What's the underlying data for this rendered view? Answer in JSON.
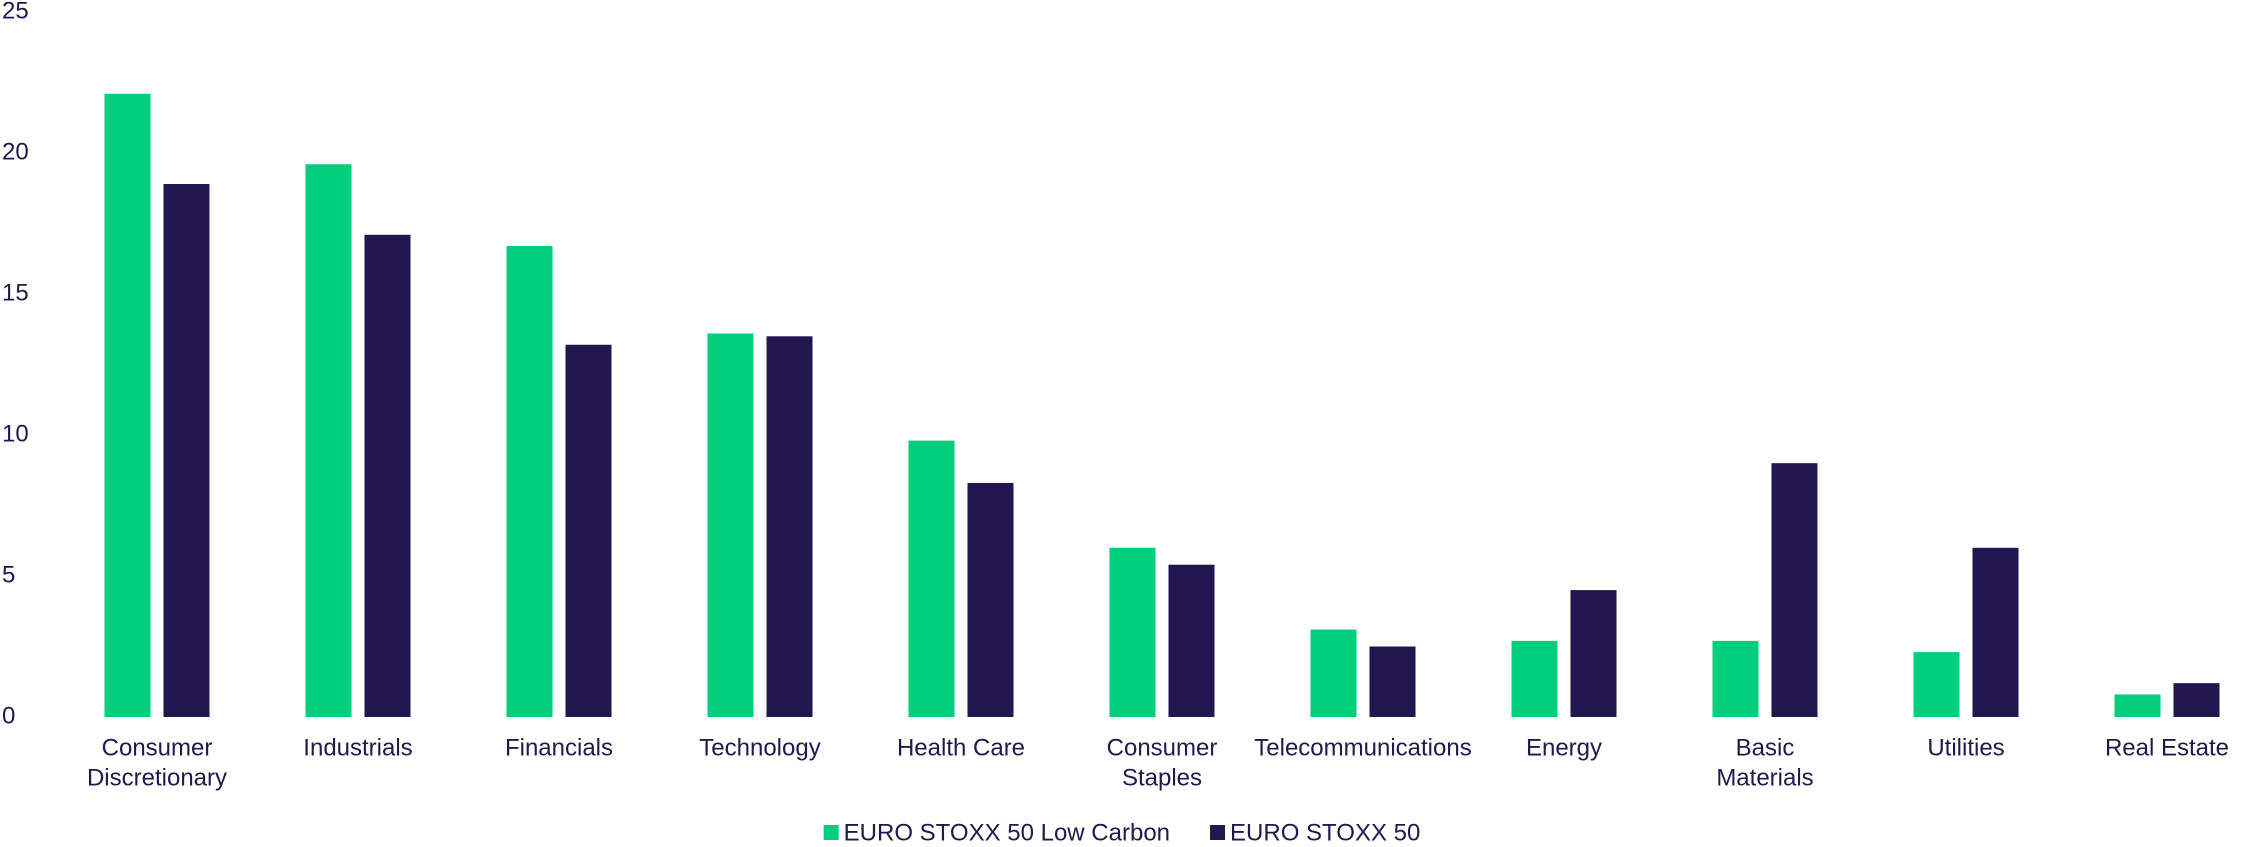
{
  "chart_data": {
    "type": "bar",
    "categories": [
      [
        "Consumer",
        "Discretionary"
      ],
      [
        "Industrials"
      ],
      [
        "Financials"
      ],
      [
        "Technology"
      ],
      [
        "Health Care"
      ],
      [
        "Consumer",
        "Staples"
      ],
      [
        "Telecommunications"
      ],
      [
        "Energy"
      ],
      [
        "Basic",
        "Materials"
      ],
      [
        "Utilities"
      ],
      [
        "Real Estate"
      ]
    ],
    "series": [
      {
        "name": "EURO STOXX 50 Low Carbon",
        "color": "#00ce7c",
        "values": [
          22.1,
          19.6,
          16.7,
          13.6,
          9.8,
          6.0,
          3.1,
          2.7,
          2.7,
          2.3,
          0.8
        ]
      },
      {
        "name": "EURO STOXX 50",
        "color": "#211650",
        "values": [
          18.9,
          17.1,
          13.2,
          13.5,
          8.3,
          5.4,
          2.5,
          4.5,
          9.0,
          6.0,
          1.2
        ]
      }
    ],
    "ylim": [
      0,
      25
    ],
    "yticks": [
      0,
      5,
      10,
      15,
      20,
      25
    ],
    "grid": false,
    "legend": "bottom"
  }
}
